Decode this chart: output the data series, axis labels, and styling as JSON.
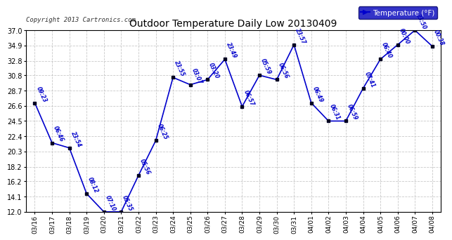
{
  "title": "Outdoor Temperature Daily Low 20130409",
  "copyright": "Copyright 2013 Cartronics.com",
  "legend_label": "Temperature (°F)",
  "dates": [
    "03/16",
    "03/17",
    "03/18",
    "03/19",
    "03/20",
    "03/21",
    "03/22",
    "03/23",
    "03/24",
    "03/25",
    "03/26",
    "03/27",
    "03/28",
    "03/29",
    "03/30",
    "03/31",
    "04/01",
    "04/02",
    "04/03",
    "04/04",
    "04/05",
    "04/06",
    "04/07",
    "04/08"
  ],
  "values": [
    27.0,
    21.5,
    20.8,
    14.5,
    12.0,
    12.0,
    17.0,
    21.8,
    30.5,
    29.5,
    30.2,
    33.0,
    26.5,
    30.8,
    30.2,
    35.0,
    27.0,
    24.5,
    24.5,
    29.0,
    33.0,
    35.0,
    37.0,
    34.8
  ],
  "time_labels": [
    "09:23",
    "06:46",
    "23:54",
    "08:12",
    "07:10",
    "05:35",
    "05:56",
    "06:25",
    "23:55",
    "03:07",
    "03:20",
    "23:49",
    "06:57",
    "05:59",
    "06:56",
    "23:57",
    "06:49",
    "06:31",
    "06:59",
    "07:41",
    "06:40",
    "00:00",
    "23:50",
    "00:38"
  ],
  "ylim": [
    12.0,
    37.0
  ],
  "yticks": [
    12.0,
    14.1,
    16.2,
    18.2,
    20.3,
    22.4,
    24.5,
    26.6,
    28.7,
    30.8,
    32.8,
    34.9,
    37.0
  ],
  "line_color": "#0000CC",
  "marker_color": "#000022",
  "bg_color": "#ffffff",
  "grid_color": "#bbbbbb",
  "label_color": "#0000CC",
  "title_color": "#000000",
  "legend_bg": "#0000BB",
  "legend_text_color": "#ffffff"
}
